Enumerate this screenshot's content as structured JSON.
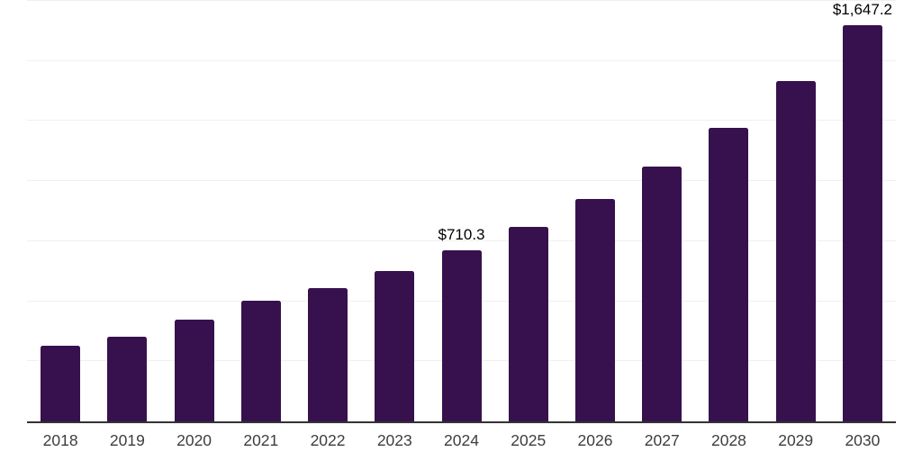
{
  "chart_data": {
    "type": "bar",
    "title": "",
    "xlabel": "",
    "ylabel": "",
    "categories": [
      "2018",
      "2019",
      "2020",
      "2021",
      "2022",
      "2023",
      "2024",
      "2025",
      "2026",
      "2027",
      "2028",
      "2029",
      "2030"
    ],
    "values": [
      314,
      351,
      423,
      502,
      556,
      626,
      710.3,
      808,
      925,
      1059,
      1223,
      1417,
      1647.2
    ],
    "data_labels": [
      {
        "category": "2024",
        "text": "$710.3"
      },
      {
        "category": "2030",
        "text": "$1,647.2"
      }
    ],
    "ylim": [
      0,
      1753
    ],
    "gridline_values": [
      250,
      500,
      750,
      1000,
      1250,
      1500,
      1750
    ],
    "grid": "horizontal",
    "legend_position": "none"
  },
  "style": {
    "bar_color": "#37114d",
    "axis_line_color": "#333333",
    "gridline_color": "#f0f0f0",
    "tick_label_color": "#3d3d3d",
    "data_label_color": "#000000",
    "background": "#ffffff"
  }
}
